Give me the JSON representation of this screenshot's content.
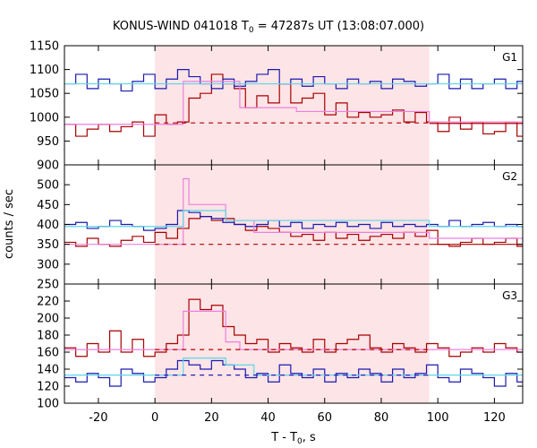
{
  "title": {
    "main": "KONUS-WIND 041018 T",
    "sub": "0",
    "rest": " = 47287s UT (13:08:07.000)"
  },
  "xlabel": {
    "main": "T - T",
    "sub": "0",
    "rest": ", s"
  },
  "ylabel": "counts / sec",
  "colors": {
    "shade": "#fde4e6",
    "ch_a": "#a80000",
    "ch_b": "#1a1ab0",
    "model": "#ec80e0",
    "fit_a": "#b00000",
    "fit_b": "#5ad8e8",
    "bkg_a": "#b00000",
    "bkg_b": "#2020c0"
  },
  "chart_data": {
    "type": "line",
    "interval_shade": [
      0,
      97
    ],
    "xlim": [
      -32,
      130
    ],
    "xticks": [
      -20,
      0,
      20,
      40,
      60,
      80,
      100,
      120
    ],
    "grid": false,
    "panels": [
      {
        "label": "G1",
        "ylim": [
          900,
          1150
        ],
        "yticks": [
          900,
          950,
          1000,
          1050,
          1100,
          1150
        ],
        "series": [
          {
            "id": "ch_a",
            "style": "step",
            "x": [
              -32,
              -28,
              -24,
              -20,
              -16,
              -12,
              -8,
              -4,
              0,
              4,
              8,
              12,
              16,
              20,
              24,
              28,
              32,
              36,
              40,
              44,
              48,
              52,
              56,
              60,
              64,
              68,
              72,
              76,
              80,
              84,
              88,
              92,
              96,
              100,
              104,
              108,
              112,
              116,
              120,
              124,
              128
            ],
            "y": [
              985,
              960,
              975,
              985,
              970,
              980,
              990,
              960,
              1005,
              985,
              990,
              1040,
              1050,
              1090,
              1070,
              1060,
              1020,
              1045,
              1030,
              1070,
              1030,
              1040,
              1050,
              1005,
              1030,
              1000,
              1010,
              1000,
              1005,
              1015,
              990,
              1010,
              990,
              970,
              1000,
              975,
              990,
              965,
              970,
              990,
              960
            ]
          },
          {
            "id": "ch_b",
            "style": "step",
            "x": [
              -32,
              -28,
              -24,
              -20,
              -16,
              -12,
              -8,
              -4,
              0,
              4,
              8,
              12,
              16,
              20,
              24,
              28,
              32,
              36,
              40,
              44,
              48,
              52,
              56,
              60,
              64,
              68,
              72,
              76,
              80,
              84,
              88,
              92,
              96,
              100,
              104,
              108,
              112,
              116,
              120,
              124,
              128
            ],
            "y": [
              1070,
              1090,
              1060,
              1080,
              1070,
              1055,
              1075,
              1090,
              1060,
              1080,
              1100,
              1085,
              1070,
              1060,
              1080,
              1065,
              1075,
              1090,
              1100,
              1070,
              1080,
              1065,
              1085,
              1070,
              1060,
              1080,
              1070,
              1075,
              1060,
              1080,
              1075,
              1065,
              1070,
              1090,
              1060,
              1080,
              1060,
              1070,
              1080,
              1060,
              1075
            ]
          },
          {
            "id": "model",
            "style": "step",
            "x": [
              -32,
              10,
              30,
              50,
              97,
              130
            ],
            "y": [
              985,
              1075,
              1020,
              1012,
              990,
              985
            ]
          },
          {
            "id": "fit_b",
            "style": "flat",
            "x": [
              -32,
              130
            ],
            "y": [
              1070,
              1070
            ]
          },
          {
            "id": "bkg_a",
            "style": "dashed",
            "x": [
              0,
              97
            ],
            "y": [
              988,
              988
            ]
          },
          {
            "id": "fit_a",
            "style": "flat",
            "x": [
              97,
              130
            ],
            "y": [
              987,
              987
            ]
          }
        ]
      },
      {
        "label": "G2",
        "ylim": [
          250,
          550
        ],
        "yticks": [
          250,
          300,
          350,
          400,
          450,
          500
        ],
        "series": [
          {
            "id": "ch_a",
            "style": "step",
            "x": [
              -32,
              -28,
              -24,
              -20,
              -16,
              -12,
              -8,
              -4,
              0,
              4,
              8,
              12,
              16,
              20,
              24,
              28,
              32,
              36,
              40,
              44,
              48,
              52,
              56,
              60,
              64,
              68,
              72,
              76,
              80,
              84,
              88,
              92,
              96,
              100,
              104,
              108,
              112,
              116,
              120,
              124,
              128
            ],
            "y": [
              355,
              345,
              365,
              350,
              345,
              360,
              370,
              355,
              380,
              365,
              390,
              415,
              420,
              410,
              415,
              400,
              385,
              395,
              390,
              380,
              370,
              375,
              360,
              380,
              365,
              375,
              360,
              370,
              375,
              365,
              380,
              370,
              385,
              350,
              345,
              355,
              365,
              350,
              355,
              365,
              345
            ]
          },
          {
            "id": "ch_b",
            "style": "step",
            "x": [
              -32,
              -28,
              -24,
              -20,
              -16,
              -12,
              -8,
              -4,
              0,
              4,
              8,
              12,
              16,
              20,
              24,
              28,
              32,
              36,
              40,
              44,
              48,
              52,
              56,
              60,
              64,
              68,
              72,
              76,
              80,
              84,
              88,
              92,
              96,
              100,
              104,
              108,
              112,
              116,
              120,
              124,
              128
            ],
            "y": [
              400,
              405,
              390,
              395,
              410,
              400,
              395,
              385,
              390,
              400,
              435,
              430,
              420,
              415,
              405,
              400,
              395,
              400,
              410,
              395,
              405,
              390,
              400,
              395,
              405,
              395,
              400,
              390,
              405,
              395,
              400,
              395,
              400,
              395,
              410,
              395,
              400,
              405,
              395,
              400,
              395
            ]
          },
          {
            "id": "model",
            "style": "step",
            "x": [
              -32,
              10,
              12,
              25,
              35,
              97,
              130
            ],
            "y": [
              350,
              515,
              450,
              410,
              380,
              365,
              350
            ]
          },
          {
            "id": "fit_b",
            "style": "step",
            "x": [
              -32,
              10,
              25,
              97,
              130
            ],
            "y": [
              395,
              435,
              410,
              395,
              395
            ]
          },
          {
            "id": "bkg_a",
            "style": "dashed",
            "x": [
              0,
              97
            ],
            "y": [
              350,
              350
            ]
          },
          {
            "id": "fit_a",
            "style": "flat",
            "x": [
              97,
              130
            ],
            "y": [
              350,
              350
            ]
          }
        ]
      },
      {
        "label": "G3",
        "ylim": [
          100,
          240
        ],
        "yticks": [
          100,
          120,
          140,
          160,
          180,
          200,
          220
        ],
        "series": [
          {
            "id": "ch_a",
            "style": "step",
            "x": [
              -32,
              -28,
              -24,
              -20,
              -16,
              -12,
              -8,
              -4,
              0,
              4,
              8,
              12,
              16,
              20,
              24,
              28,
              32,
              36,
              40,
              44,
              48,
              52,
              56,
              60,
              64,
              68,
              72,
              76,
              80,
              84,
              88,
              92,
              96,
              100,
              104,
              108,
              112,
              116,
              120,
              124,
              128
            ],
            "y": [
              165,
              155,
              170,
              160,
              185,
              160,
              175,
              155,
              160,
              170,
              180,
              222,
              210,
              215,
              190,
              180,
              170,
              175,
              160,
              170,
              165,
              160,
              175,
              160,
              170,
              175,
              180,
              165,
              160,
              170,
              165,
              160,
              170,
              165,
              155,
              160,
              165,
              160,
              170,
              165,
              160
            ]
          },
          {
            "id": "ch_b",
            "style": "step",
            "x": [
              -32,
              -28,
              -24,
              -20,
              -16,
              -12,
              -8,
              -4,
              0,
              4,
              8,
              12,
              16,
              20,
              24,
              28,
              32,
              36,
              40,
              44,
              48,
              52,
              56,
              60,
              64,
              68,
              72,
              76,
              80,
              84,
              88,
              92,
              96,
              100,
              104,
              108,
              112,
              116,
              120,
              124,
              128
            ],
            "y": [
              130,
              125,
              135,
              130,
              120,
              140,
              135,
              125,
              130,
              140,
              150,
              145,
              140,
              150,
              145,
              140,
              130,
              135,
              125,
              145,
              135,
              130,
              140,
              125,
              135,
              130,
              140,
              135,
              125,
              140,
              130,
              135,
              145,
              130,
              125,
              140,
              135,
              130,
              120,
              135,
              125
            ]
          },
          {
            "id": "model",
            "style": "step",
            "x": [
              -32,
              10,
              25,
              30,
              97,
              130
            ],
            "y": [
              163,
              208,
              172,
              163,
              163,
              163
            ]
          },
          {
            "id": "fit_b",
            "style": "step",
            "x": [
              -32,
              10,
              25,
              35,
              97,
              130
            ],
            "y": [
              133,
              153,
              145,
              133,
              133,
              133
            ]
          },
          {
            "id": "bkg_a",
            "style": "dashed",
            "x": [
              0,
              97
            ],
            "y": [
              163,
              163
            ]
          },
          {
            "id": "bkg_b",
            "style": "dashed",
            "x": [
              0,
              97
            ],
            "y": [
              133,
              133
            ]
          }
        ]
      }
    ]
  }
}
